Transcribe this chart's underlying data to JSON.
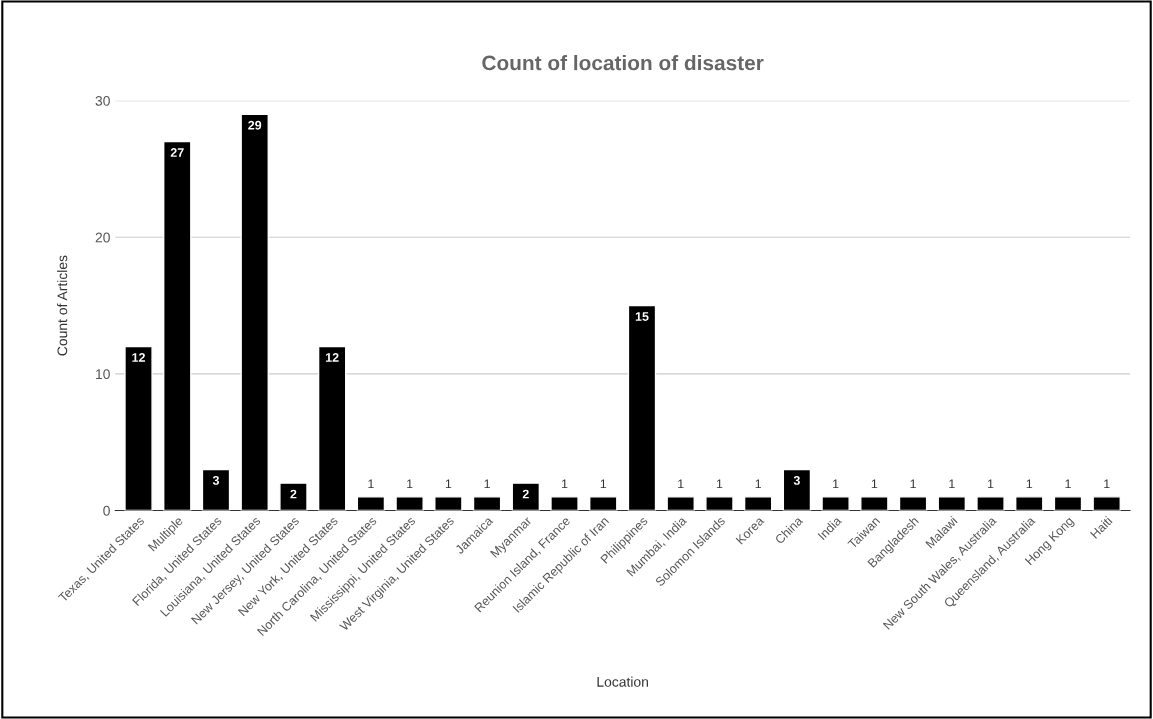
{
  "chart_data": {
    "type": "bar",
    "title": "Count of location of disaster",
    "xlabel": "Location",
    "ylabel": "Count of Articles",
    "categories": [
      "Texas, United States",
      "Multiple",
      "Florida, United States",
      "Louisiana, United States",
      "New Jersey, United States",
      "New York, United States",
      "North Carolina, United States",
      "Mississippi, United States",
      "West Virginia, United States",
      "Jamaica",
      "Myanmar",
      "Reunion Island, France",
      "Islamic Republic of Iran",
      "Philippines",
      "Mumbai, India",
      "Solomon Islands",
      "Korea",
      "China",
      "India",
      "Taiwan",
      "Bangladesh",
      "Malawi",
      "New South Wales, Australia",
      "Queensland, Australia",
      "Hong Kong",
      "Haiti"
    ],
    "values": [
      12,
      27,
      3,
      29,
      2,
      12,
      1,
      1,
      1,
      1,
      2,
      1,
      1,
      15,
      1,
      1,
      1,
      3,
      1,
      1,
      1,
      1,
      1,
      1,
      1,
      1
    ],
    "color": "#000000",
    "ylim": [
      0,
      30
    ],
    "yticks": [
      0,
      10,
      20,
      30
    ],
    "grid": "y",
    "data_labels": true,
    "legend": false
  }
}
